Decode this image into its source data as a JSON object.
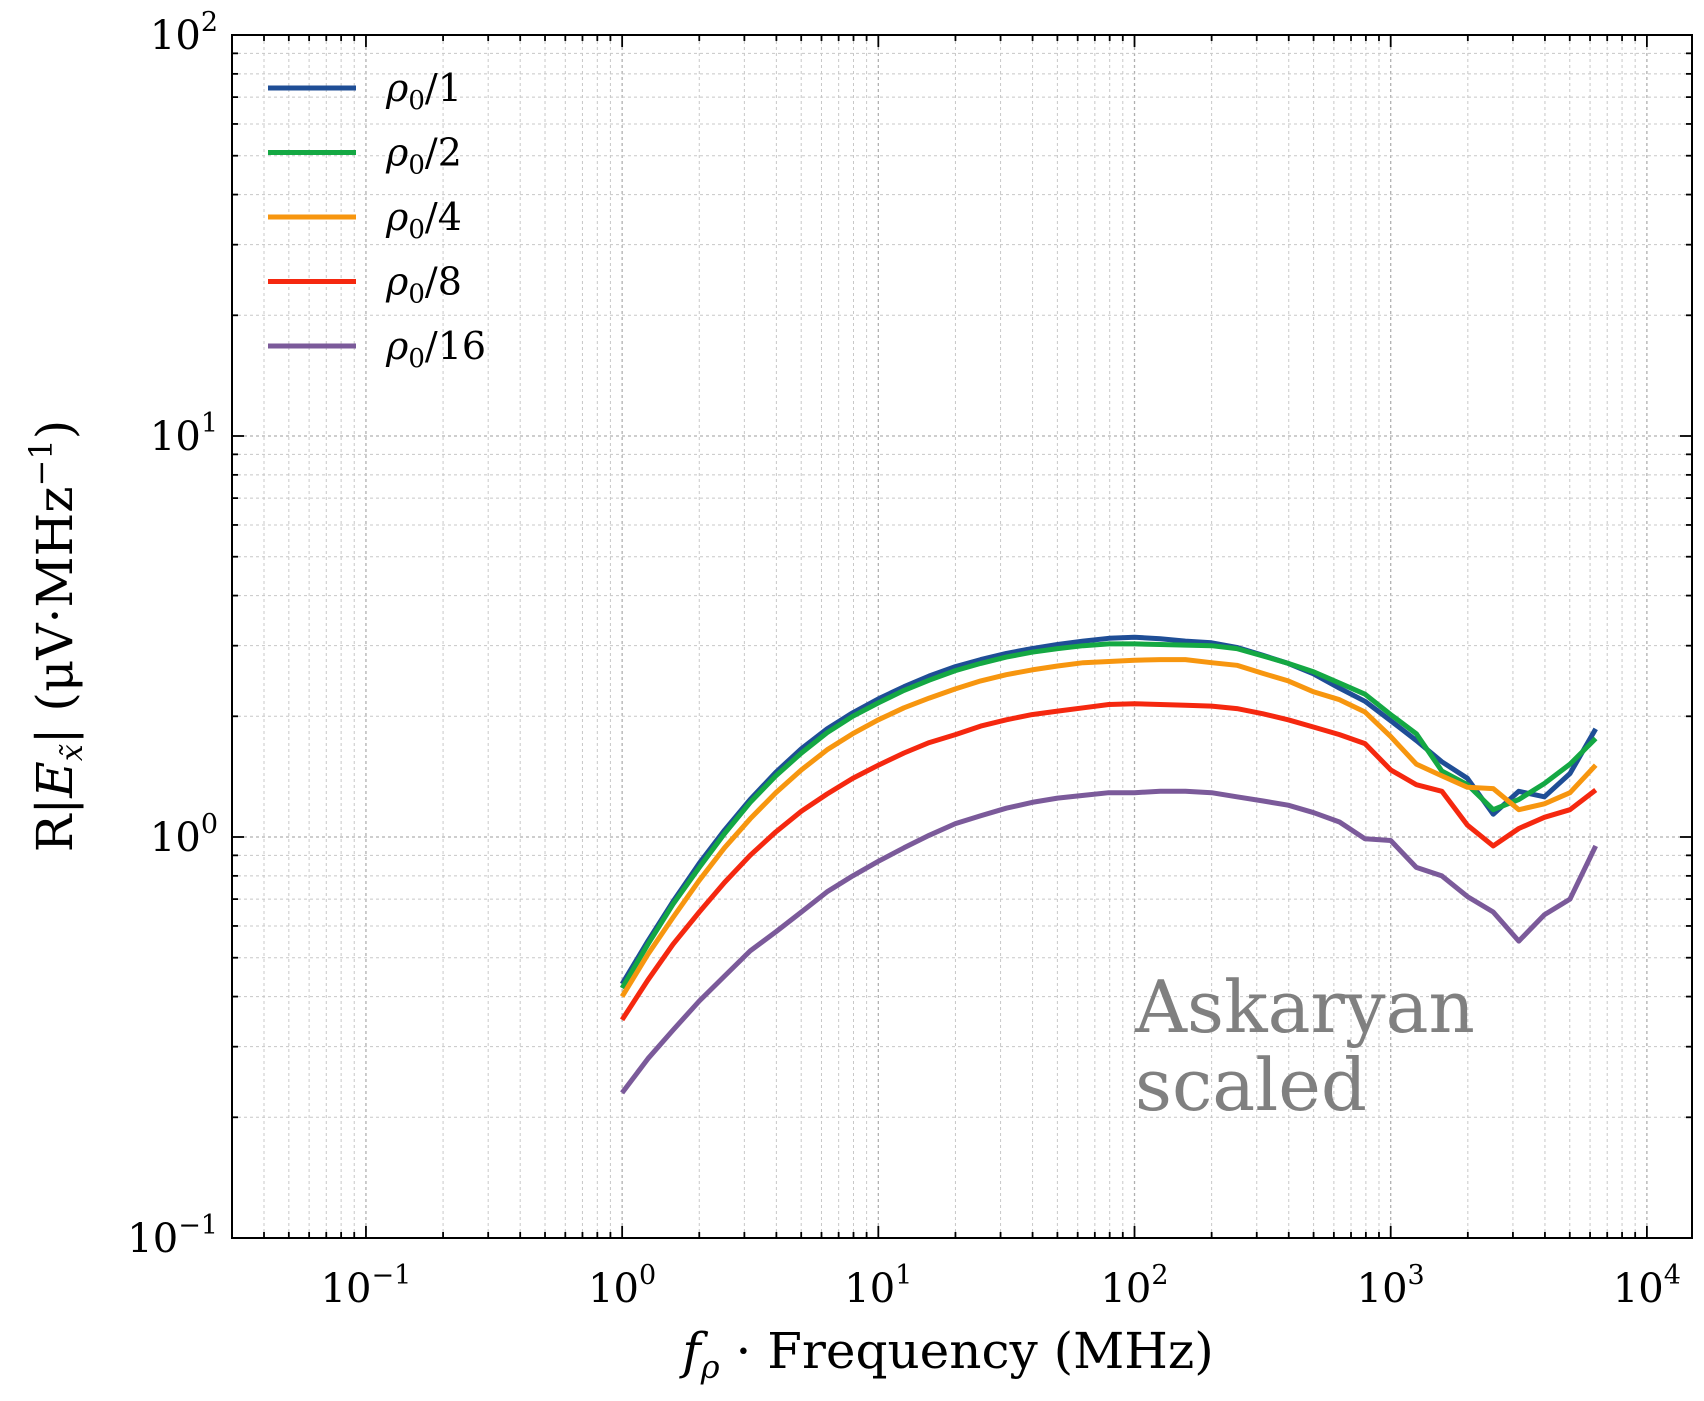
{
  "chart_data": {
    "type": "line",
    "xlabel_main": "f",
    "xlabel_sub": "ρ",
    "xlabel_rest": " · Frequency (MHz)",
    "ylabel_R": "R|",
    "ylabel_E": "E",
    "ylabel_sub": "x̃",
    "ylabel_mid": "| (μV·MHz",
    "ylabel_sup": "−1",
    "ylabel_end": ")",
    "xscale": "log",
    "yscale": "log",
    "xlim": [
      0.03,
      15000
    ],
    "ylim": [
      0.1,
      100
    ],
    "grid": true,
    "legend_placement": "top-left",
    "x_ticks": [
      {
        "base": "10",
        "exp": "−1"
      },
      {
        "base": "10",
        "exp": "0"
      },
      {
        "base": "10",
        "exp": "1"
      },
      {
        "base": "10",
        "exp": "2"
      },
      {
        "base": "10",
        "exp": "3"
      },
      {
        "base": "10",
        "exp": "4"
      }
    ],
    "y_ticks": [
      {
        "base": "10",
        "exp": "−1"
      },
      {
        "base": "10",
        "exp": "0"
      },
      {
        "base": "10",
        "exp": "1"
      },
      {
        "base": "10",
        "exp": "2"
      }
    ],
    "annotation": [
      "Askaryan",
      "scaled"
    ],
    "x": [
      1,
      1.26,
      1.58,
      2,
      2.51,
      3.16,
      3.98,
      5.01,
      6.31,
      7.94,
      10,
      12.6,
      15.8,
      20,
      25.1,
      31.6,
      39.8,
      50.1,
      63.1,
      79.4,
      100,
      126,
      158,
      200,
      251,
      316,
      398,
      501,
      631,
      794,
      1000,
      1259,
      1585,
      1995,
      2512,
      3162,
      3981,
      5012,
      6310
    ],
    "series": [
      {
        "name_main": "ρ",
        "name_sub": "0",
        "name_rest": "/1",
        "color": "#1f4e96",
        "values": [
          0.43,
          0.55,
          0.69,
          0.86,
          1.04,
          1.24,
          1.45,
          1.66,
          1.86,
          2.04,
          2.21,
          2.37,
          2.52,
          2.66,
          2.77,
          2.87,
          2.95,
          3.02,
          3.08,
          3.13,
          3.15,
          3.12,
          3.08,
          3.05,
          2.97,
          2.84,
          2.71,
          2.55,
          2.35,
          2.18,
          1.95,
          1.74,
          1.54,
          1.4,
          1.14,
          1.3,
          1.26,
          1.44,
          1.86
        ]
      },
      {
        "name_main": "ρ",
        "name_sub": "0",
        "name_rest": "/2",
        "color": "#14a843",
        "values": [
          0.42,
          0.54,
          0.68,
          0.84,
          1.02,
          1.22,
          1.42,
          1.62,
          1.82,
          2.0,
          2.16,
          2.32,
          2.46,
          2.6,
          2.71,
          2.81,
          2.89,
          2.95,
          3.0,
          3.03,
          3.03,
          3.02,
          3.01,
          3.0,
          2.95,
          2.83,
          2.71,
          2.58,
          2.42,
          2.27,
          2.02,
          1.81,
          1.46,
          1.35,
          1.17,
          1.24,
          1.36,
          1.52,
          1.76
        ]
      },
      {
        "name_main": "ρ",
        "name_sub": "0",
        "name_rest": "/4",
        "color": "#f7960f",
        "values": [
          0.4,
          0.51,
          0.63,
          0.78,
          0.94,
          1.11,
          1.29,
          1.47,
          1.65,
          1.81,
          1.96,
          2.1,
          2.22,
          2.34,
          2.45,
          2.54,
          2.61,
          2.67,
          2.72,
          2.74,
          2.76,
          2.77,
          2.77,
          2.72,
          2.68,
          2.56,
          2.45,
          2.3,
          2.2,
          2.05,
          1.78,
          1.52,
          1.42,
          1.33,
          1.32,
          1.17,
          1.21,
          1.29,
          1.51
        ]
      },
      {
        "name_main": "ρ",
        "name_sub": "0",
        "name_rest": "/8",
        "color": "#f5280f",
        "values": [
          0.35,
          0.44,
          0.54,
          0.65,
          0.77,
          0.9,
          1.03,
          1.16,
          1.28,
          1.4,
          1.51,
          1.62,
          1.72,
          1.8,
          1.89,
          1.96,
          2.02,
          2.06,
          2.1,
          2.14,
          2.15,
          2.14,
          2.13,
          2.12,
          2.09,
          2.03,
          1.96,
          1.88,
          1.8,
          1.71,
          1.47,
          1.35,
          1.3,
          1.07,
          0.95,
          1.05,
          1.12,
          1.17,
          1.31
        ]
      },
      {
        "name_main": "ρ",
        "name_sub": "0",
        "name_rest": "/16",
        "color": "#7b5a9a",
        "values": [
          0.23,
          0.28,
          0.33,
          0.39,
          0.45,
          0.52,
          0.58,
          0.65,
          0.73,
          0.8,
          0.87,
          0.94,
          1.01,
          1.08,
          1.13,
          1.18,
          1.22,
          1.25,
          1.27,
          1.29,
          1.29,
          1.3,
          1.3,
          1.29,
          1.26,
          1.23,
          1.2,
          1.15,
          1.09,
          0.99,
          0.98,
          0.84,
          0.8,
          0.71,
          0.65,
          0.55,
          0.64,
          0.7,
          0.95
        ]
      }
    ]
  }
}
